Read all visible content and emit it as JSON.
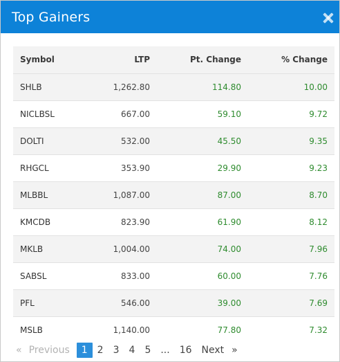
{
  "modal": {
    "title": "Top Gainers"
  },
  "table": {
    "headers": {
      "symbol": "Symbol",
      "ltp": "LTP",
      "pt_change": "Pt. Change",
      "pct_change": "% Change"
    },
    "rows": [
      {
        "symbol": "SHLB",
        "ltp": "1,262.80",
        "pt_change": "114.80",
        "pct_change": "10.00"
      },
      {
        "symbol": "NICLBSL",
        "ltp": "667.00",
        "pt_change": "59.10",
        "pct_change": "9.72"
      },
      {
        "symbol": "DOLTI",
        "ltp": "532.00",
        "pt_change": "45.50",
        "pct_change": "9.35"
      },
      {
        "symbol": "RHGCL",
        "ltp": "353.90",
        "pt_change": "29.90",
        "pct_change": "9.23"
      },
      {
        "symbol": "MLBBL",
        "ltp": "1,087.00",
        "pt_change": "87.00",
        "pct_change": "8.70"
      },
      {
        "symbol": "KMCDB",
        "ltp": "823.90",
        "pt_change": "61.90",
        "pct_change": "8.12"
      },
      {
        "symbol": "MKLB",
        "ltp": "1,004.00",
        "pt_change": "74.00",
        "pct_change": "7.96"
      },
      {
        "symbol": "SABSL",
        "ltp": "833.00",
        "pt_change": "60.00",
        "pct_change": "7.76"
      },
      {
        "symbol": "PFL",
        "ltp": "546.00",
        "pt_change": "39.00",
        "pct_change": "7.69"
      },
      {
        "symbol": "MSLB",
        "ltp": "1,140.00",
        "pt_change": "77.80",
        "pct_change": "7.32"
      }
    ]
  },
  "pagination": {
    "prev_arrow": "«",
    "prev_label": "Previous",
    "pages": [
      "1",
      "2",
      "3",
      "4",
      "5"
    ],
    "ellipsis": "...",
    "last_page": "16",
    "next_label": "Next",
    "next_arrow": "»",
    "current_page": "1"
  },
  "colors": {
    "header_bg": "#0d82d8",
    "positive": "#2e8b2e",
    "active_page": "#2c8fdb"
  },
  "icons": {
    "close": "close-icon"
  }
}
